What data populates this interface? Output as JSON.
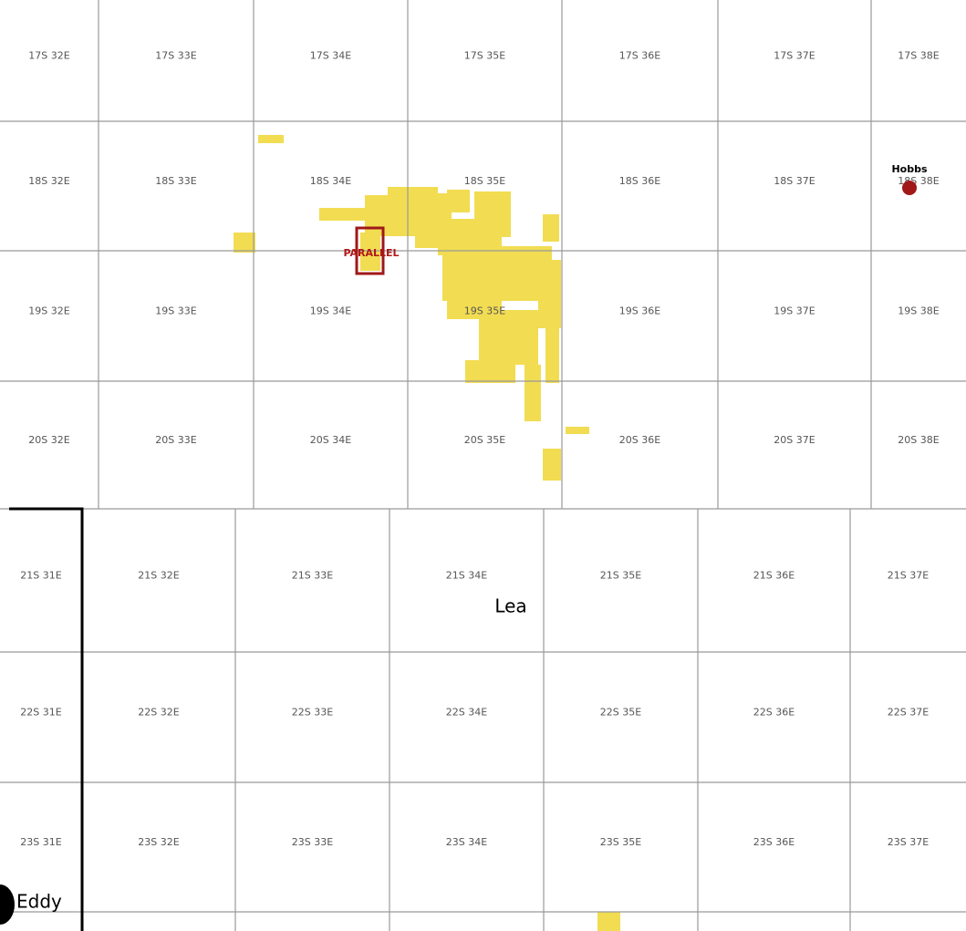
{
  "townships_north": [
    [
      "17S 32E",
      "17S 33E",
      "17S 34E",
      "17S 35E",
      "17S 36E",
      "17S 37E",
      "17S 38E"
    ],
    [
      "18S 32E",
      "18S 33E",
      "18S 34E",
      "18S 35E",
      "18S 36E",
      "18S 37E",
      "18S 38E"
    ],
    [
      "19S 32E",
      "19S 33E",
      "19S 34E",
      "19S 35E",
      "19S 36E",
      "19S 37E",
      "19S 38E"
    ],
    [
      "20S 32E",
      "20S 33E",
      "20S 34E",
      "20S 35E",
      "20S 36E",
      "20S 37E",
      "20S 38E"
    ]
  ],
  "townships_south": [
    [
      "21S 31E",
      "21S 32E",
      "21S 33E",
      "21S 34E",
      "21S 35E",
      "21S 36E",
      "21S 37E"
    ],
    [
      "22S 31E",
      "22S 32E",
      "22S 33E",
      "22S 34E",
      "22S 35E",
      "22S 36E",
      "22S 37E"
    ],
    [
      "23S 31E",
      "23S 32E",
      "23S 33E",
      "23S 34E",
      "23S 35E",
      "23S 36E",
      "23S 37E"
    ]
  ],
  "places": {
    "county_lea": "Lea",
    "county_eddy": "Eddy",
    "city": "Hobbs",
    "project": "PARALLEL"
  }
}
